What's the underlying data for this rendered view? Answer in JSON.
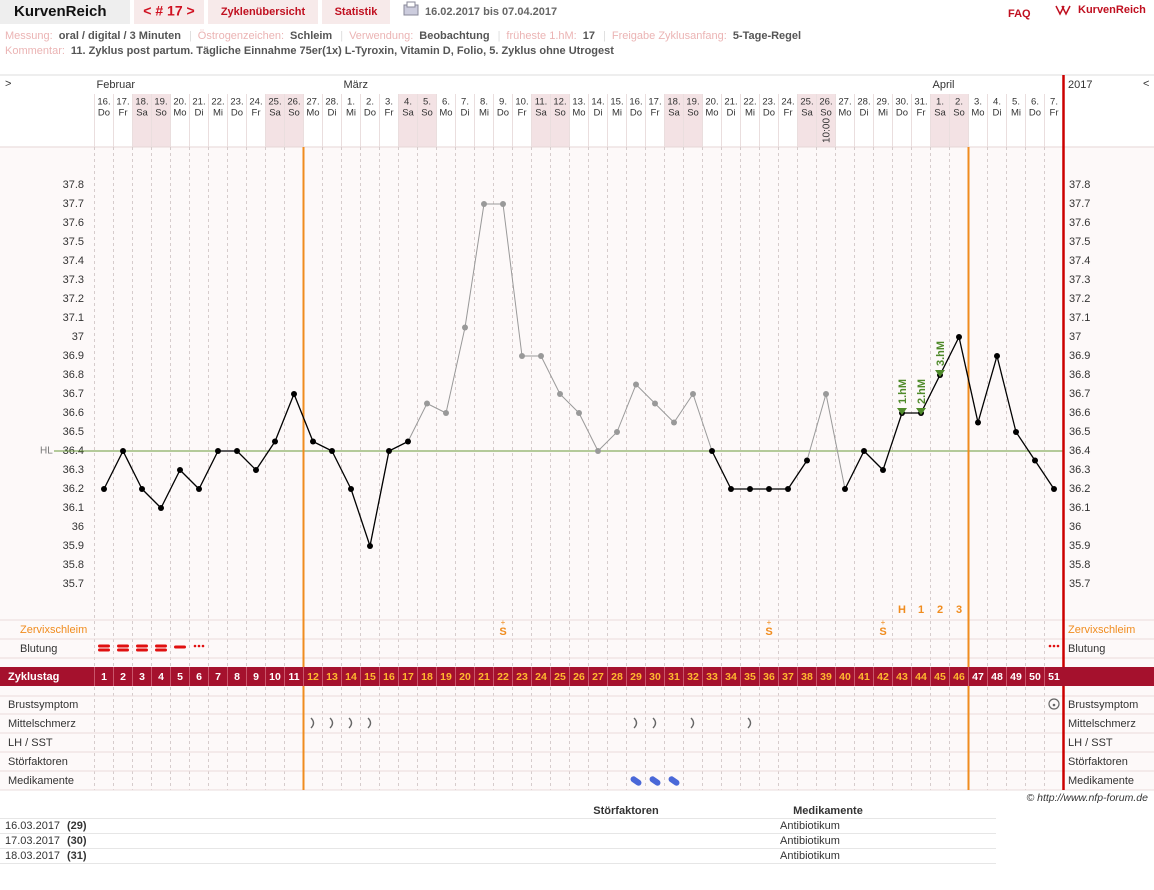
{
  "header": {
    "title": "KurvenReich",
    "cycle_nav": "< # 17 >",
    "tabs": [
      "Zyklenübersicht",
      "Statistik"
    ],
    "period": "16.02.2017 bis 07.04.2017",
    "faq": "FAQ",
    "logo": "KurvenReich"
  },
  "info": {
    "fields": [
      {
        "label": "Messung:",
        "value": "oral / digital / 3 Minuten"
      },
      {
        "label": "Östrogenzeichen:",
        "value": "Schleim"
      },
      {
        "label": "Verwendung:",
        "value": "Beobachtung"
      },
      {
        "label": "früheste 1.hM:",
        "value": "17"
      },
      {
        "label": "Freigabe Zyklusanfang:",
        "value": "5-Tage-Regel"
      }
    ],
    "separator": "|",
    "comment_label": "Kommentar:",
    "comment": "11. Zyklus post partum. Tägliche Einnahme 75er(1x) L-Tyroxin, Vitamin D, Folio,  5. Zyklus ohne Utrogest"
  },
  "chart_data": {
    "type": "line",
    "nav": [
      ">",
      "<"
    ],
    "year": "2017",
    "months": [
      {
        "label": "Februar",
        "day": 1
      },
      {
        "label": "März",
        "day": 14
      },
      {
        "label": "April",
        "day": 45
      }
    ],
    "categories": [
      "16.",
      "17.",
      "18.",
      "19.",
      "20.",
      "21.",
      "22.",
      "23.",
      "24.",
      "25.",
      "26.",
      "27.",
      "28.",
      "1.",
      "2.",
      "3.",
      "4.",
      "5.",
      "6.",
      "7.",
      "8.",
      "9.",
      "10.",
      "11.",
      "12.",
      "13.",
      "14.",
      "15.",
      "16.",
      "17.",
      "18.",
      "19.",
      "20.",
      "21.",
      "22.",
      "23.",
      "24.",
      "25.",
      "26.",
      "27.",
      "28.",
      "29.",
      "30.",
      "31.",
      "1.",
      "2.",
      "3.",
      "4.",
      "5.",
      "6.",
      "7."
    ],
    "weekdays": [
      "Do",
      "Fr",
      "Sa",
      "So",
      "Mo",
      "Di",
      "Mi",
      "Do",
      "Fr",
      "Sa",
      "So",
      "Mo",
      "Di",
      "Mi",
      "Do",
      "Fr",
      "Sa",
      "So",
      "Mo",
      "Di",
      "Mi",
      "Do",
      "Fr",
      "Sa",
      "So",
      "Mo",
      "Di",
      "Mi",
      "Do",
      "Fr",
      "Sa",
      "So",
      "Mo",
      "Di",
      "Mi",
      "Do",
      "Fr",
      "Sa",
      "So",
      "Mo",
      "Di",
      "Mi",
      "Do",
      "Fr",
      "Sa",
      "So",
      "Mo",
      "Di",
      "Mi",
      "Do",
      "Fr"
    ],
    "weekend_days": [
      3,
      4,
      10,
      11,
      17,
      18,
      24,
      25,
      31,
      32,
      38,
      39,
      45,
      46
    ],
    "time_note": {
      "day": 39,
      "label": "10:00"
    },
    "values": [
      36.2,
      36.4,
      36.2,
      36.1,
      36.3,
      36.2,
      36.4,
      36.4,
      36.3,
      36.45,
      36.7,
      36.45,
      36.4,
      36.2,
      35.9,
      36.4,
      36.45,
      36.65,
      36.6,
      37.05,
      37.7,
      37.7,
      36.9,
      36.9,
      36.7,
      36.6,
      36.4,
      36.5,
      36.75,
      36.65,
      36.55,
      36.7,
      36.4,
      36.2,
      36.2,
      36.2,
      36.2,
      36.35,
      36.7,
      36.2,
      36.4,
      36.3,
      36.6,
      36.6,
      36.8,
      37,
      36.55,
      36.9,
      36.5,
      36.35,
      36.2
    ],
    "color": "#000000",
    "excluded_days": [
      18,
      19,
      20,
      21,
      22,
      23,
      24,
      25,
      26,
      27,
      28,
      29,
      30,
      31,
      32,
      39
    ],
    "excluded_color": "#999999",
    "ylim": [
      35.7,
      37.8
    ],
    "yticks": [
      35.7,
      35.8,
      35.9,
      36,
      36.1,
      36.2,
      36.3,
      36.4,
      36.5,
      36.6,
      36.7,
      36.8,
      36.9,
      37,
      37.1,
      37.2,
      37.3,
      37.4,
      37.5,
      37.6,
      37.7,
      37.8
    ],
    "hl": {
      "label": "HL",
      "value": 36.4,
      "color": "#6a9a3a"
    },
    "shifts": [
      {
        "day": 43,
        "label": "1.hM"
      },
      {
        "day": 44,
        "label": "2.hM"
      },
      {
        "day": 45,
        "label": "3.hM"
      }
    ],
    "shift_color": "#4f8a2a",
    "peak": {
      "days": [
        43,
        44,
        45,
        46
      ],
      "labels": [
        "H",
        "1",
        "2",
        "3"
      ]
    },
    "boundaries_after_day": [
      11,
      46
    ],
    "boundary_color": "#f08c1e",
    "rows": {
      "cervical": {
        "label": "Zervixschleim",
        "days": [
          22,
          36,
          42
        ],
        "sign": "S",
        "mark": "+"
      },
      "bleeding": {
        "label": "Blutung",
        "heavy": [
          1,
          2,
          3,
          4
        ],
        "medium": [
          5
        ],
        "spotting": [
          6,
          51
        ]
      },
      "cycle_day_label": "Zyklustag",
      "cycle_days": [
        1,
        2,
        3,
        4,
        5,
        6,
        7,
        8,
        9,
        10,
        11,
        12,
        13,
        14,
        15,
        16,
        17,
        18,
        19,
        20,
        21,
        22,
        23,
        24,
        25,
        26,
        27,
        28,
        29,
        30,
        31,
        32,
        33,
        34,
        35,
        36,
        37,
        38,
        39,
        40,
        41,
        42,
        43,
        44,
        45,
        46,
        47,
        48,
        49,
        50,
        51
      ],
      "breast": {
        "label": "Brustsymptom",
        "days": [
          51
        ]
      },
      "pain": {
        "label": "Mittelschmerz",
        "days": [
          12,
          13,
          14,
          15,
          29,
          30,
          32,
          35
        ]
      },
      "lh": {
        "label": "LH / SST"
      },
      "disturb": {
        "label": "Störfaktoren"
      },
      "meds": {
        "label": "Medikamente",
        "days": [
          29,
          30,
          31
        ]
      }
    }
  },
  "footer": {
    "copyright": "© http://www.nfp-forum.de",
    "columns": [
      "Störfaktoren",
      "Medikamente"
    ],
    "rows": [
      [
        "16.03.2017",
        "(29)",
        "Antibiotikum"
      ],
      [
        "17.03.2017",
        "(30)",
        "Antibiotikum"
      ],
      [
        "18.03.2017",
        "(31)",
        "Antibiotikum"
      ]
    ]
  }
}
